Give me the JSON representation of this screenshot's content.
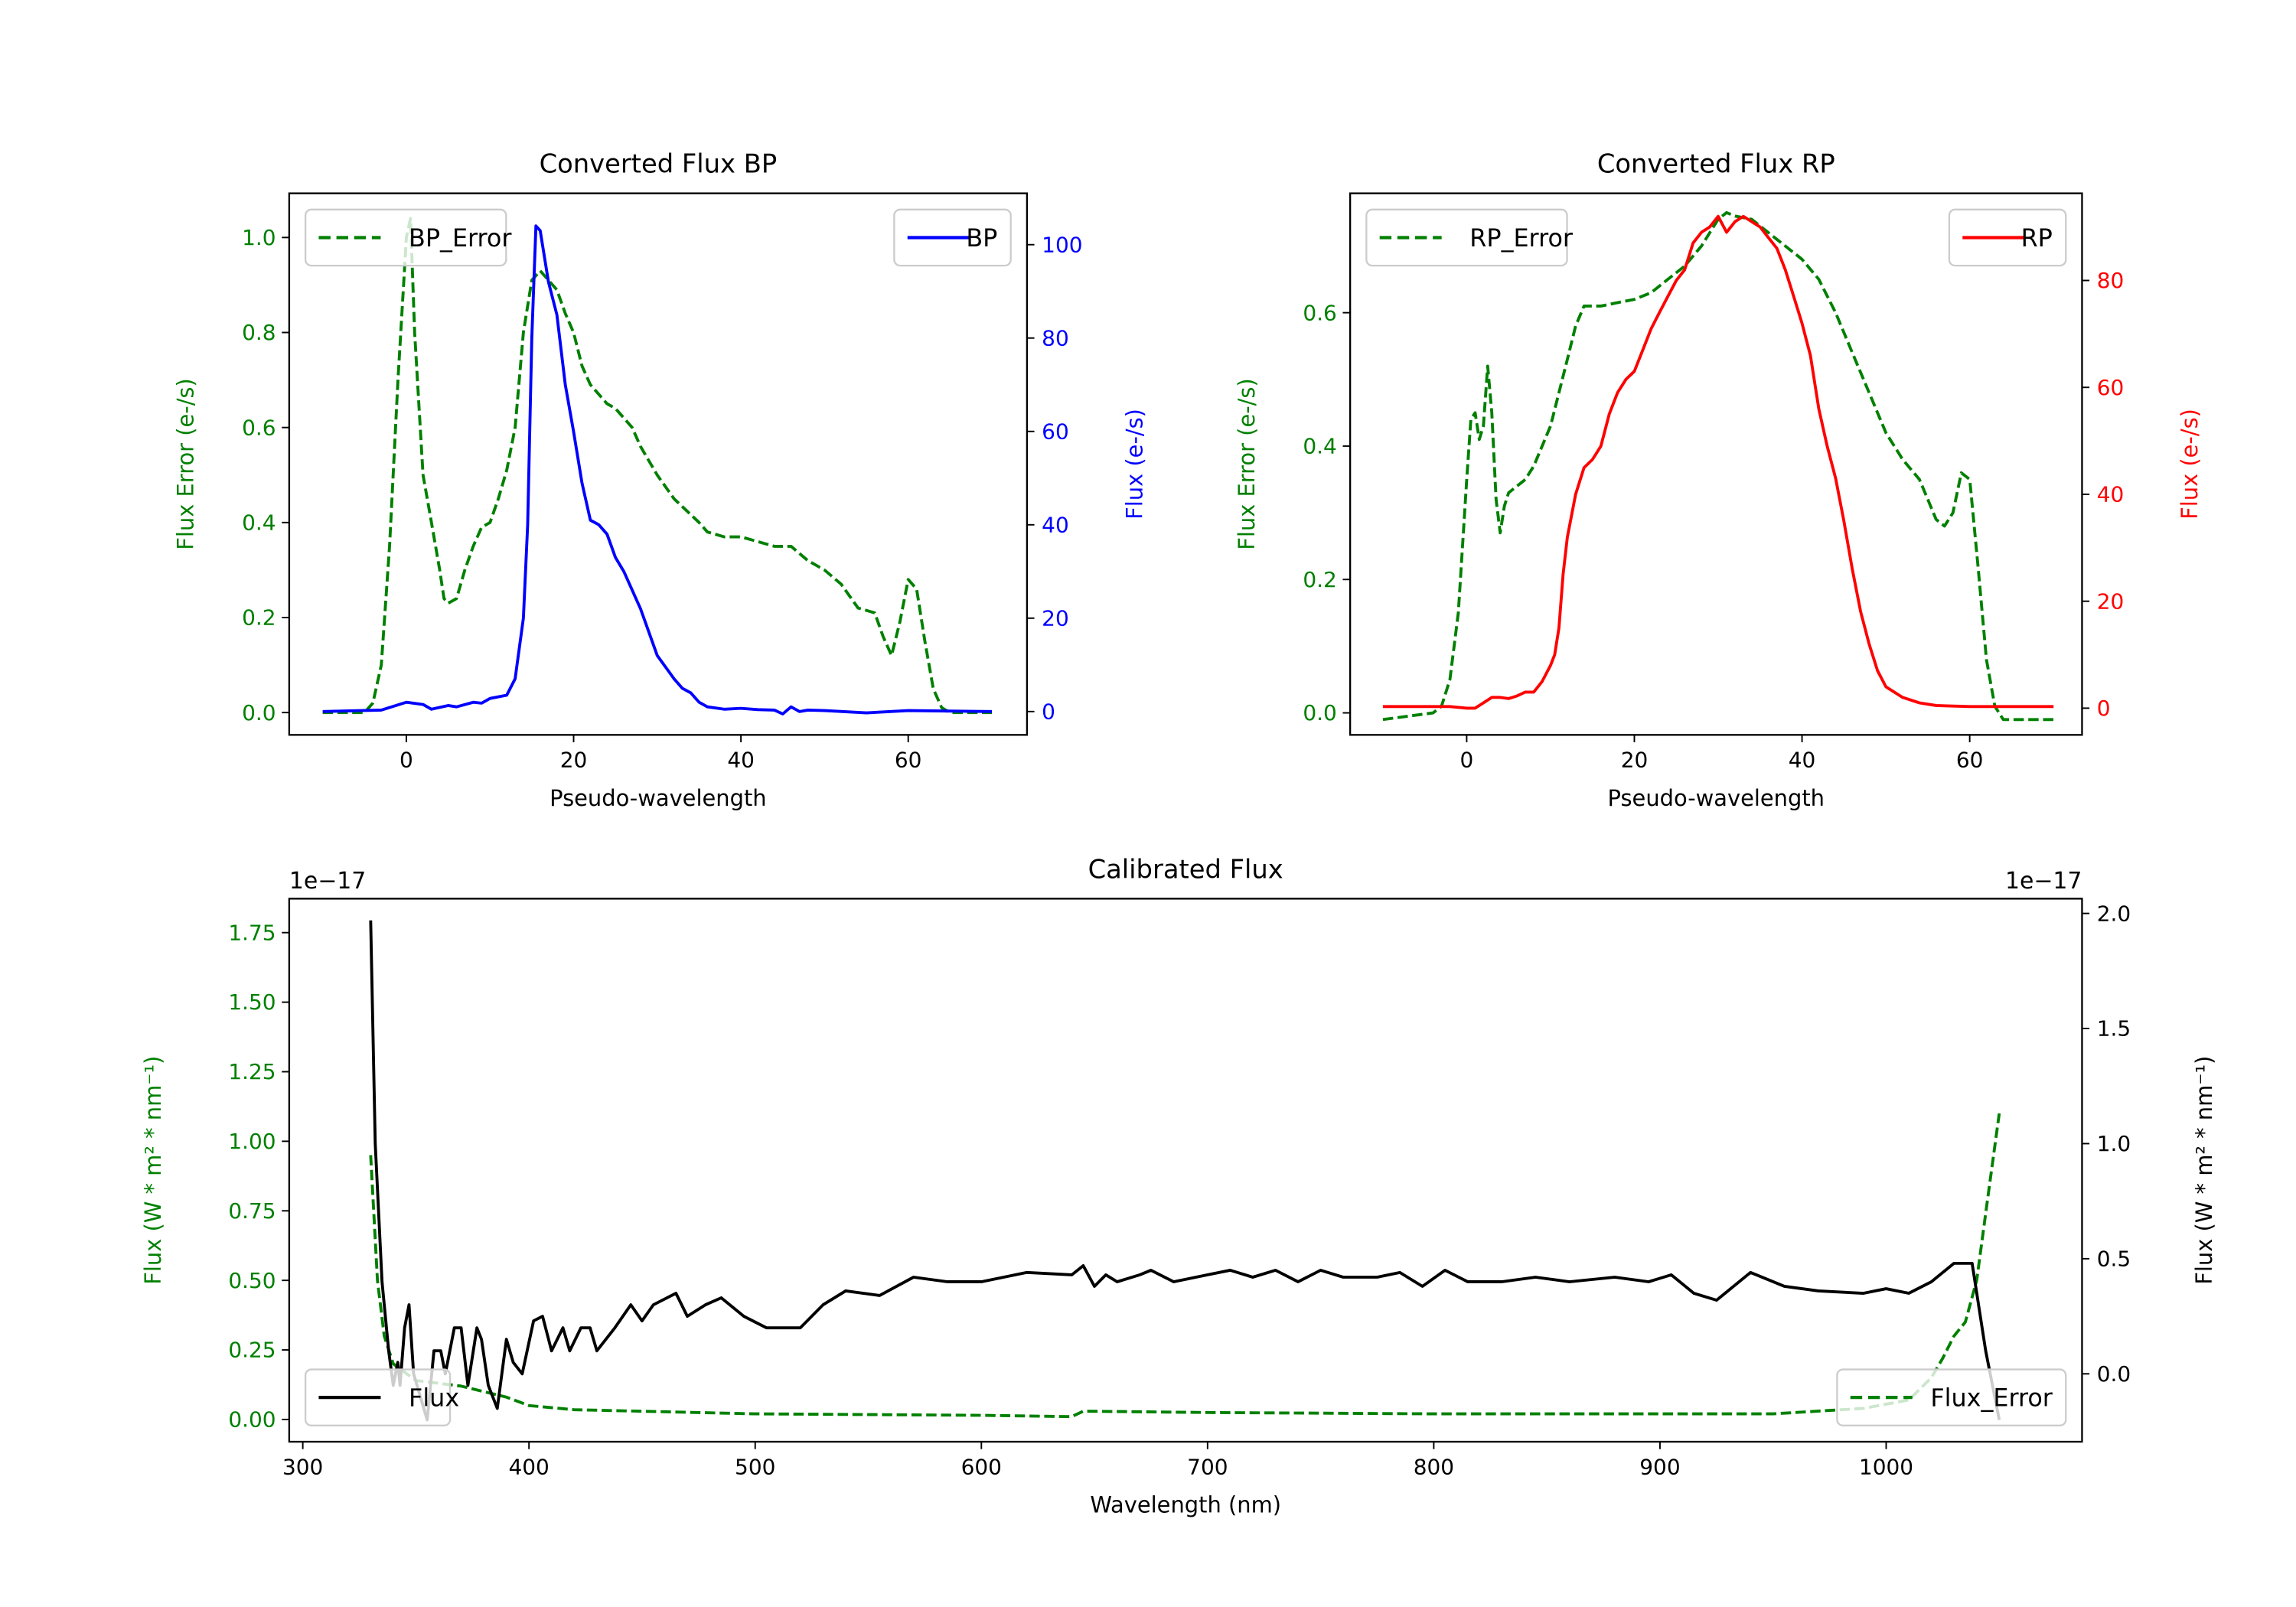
{
  "chart_data": [
    {
      "type": "line",
      "title": "Converted Flux BP",
      "xlabel": "Pseudo-wavelength",
      "ylabel_left": "Flux Error (e-/s)",
      "ylabel_right": "Flux (e-/s)",
      "xlim": [
        -14,
        74.2
      ],
      "ylim_left": [
        -0.047,
        1.093
      ],
      "ylim_right": [
        -5,
        111
      ],
      "xticks": [
        0,
        20,
        40,
        60
      ],
      "yticks_left": [
        "0.0",
        "0.2",
        "0.4",
        "0.6",
        "0.8",
        "1.0"
      ],
      "yticks_right": [
        "0",
        "20",
        "40",
        "60",
        "80",
        "100"
      ],
      "colors": {
        "left": "#008000",
        "right": "#0000ff"
      },
      "legend_left": {
        "label": "BP_Error",
        "placement": "upper-left"
      },
      "legend_right": {
        "label": "BP",
        "placement": "upper-right"
      },
      "series": [
        {
          "name": "BP_Error",
          "axis": "left",
          "style": "dashed",
          "color": "#008000",
          "x": [
            -10,
            -5,
            -4,
            -3,
            -2,
            -1,
            0,
            0.5,
            1,
            2,
            3,
            4,
            4.5,
            5,
            6,
            7,
            8,
            9,
            10,
            11,
            12,
            13,
            14,
            15,
            16,
            17,
            18,
            19,
            20,
            21,
            22,
            23,
            24,
            25,
            26,
            27,
            28,
            30,
            32,
            35,
            36,
            38,
            40,
            42,
            44,
            46,
            48,
            50,
            52,
            54,
            56,
            57,
            58,
            59,
            60,
            61,
            62,
            63,
            64,
            65,
            70
          ],
          "y": [
            0,
            0,
            0.02,
            0.1,
            0.35,
            0.7,
            1.0,
            1.04,
            0.8,
            0.5,
            0.4,
            0.3,
            0.24,
            0.23,
            0.24,
            0.3,
            0.35,
            0.39,
            0.4,
            0.45,
            0.51,
            0.6,
            0.8,
            0.91,
            0.93,
            0.91,
            0.89,
            0.84,
            0.8,
            0.73,
            0.69,
            0.67,
            0.65,
            0.64,
            0.62,
            0.6,
            0.56,
            0.5,
            0.45,
            0.4,
            0.38,
            0.37,
            0.37,
            0.36,
            0.35,
            0.35,
            0.32,
            0.3,
            0.27,
            0.22,
            0.21,
            0.16,
            0.12,
            0.19,
            0.28,
            0.26,
            0.15,
            0.05,
            0.01,
            0,
            0
          ]
        },
        {
          "name": "BP",
          "axis": "right",
          "style": "solid",
          "color": "#0000ff",
          "x": [
            -10,
            -3,
            0,
            2,
            3,
            5,
            6,
            8,
            9,
            10,
            12,
            13,
            14,
            14.5,
            15,
            15.5,
            16,
            17,
            18,
            19,
            20,
            21,
            22,
            23,
            24,
            25,
            26,
            28,
            30,
            32,
            33,
            34,
            35,
            36,
            38,
            40,
            42,
            44,
            45,
            46,
            47,
            48,
            50,
            55,
            60,
            70
          ],
          "y": [
            0,
            0.3,
            2,
            1.5,
            0.5,
            1.3,
            1,
            2,
            1.8,
            2.8,
            3.5,
            7,
            20,
            40,
            80,
            104,
            103,
            92,
            85,
            70,
            60,
            49,
            41,
            40,
            38,
            33,
            30,
            22,
            12,
            7,
            5,
            4,
            2,
            1,
            0.5,
            0.7,
            0.4,
            0.3,
            -0.5,
            1,
            0,
            0.3,
            0.2,
            -0.3,
            0.2,
            0
          ]
        }
      ]
    },
    {
      "type": "line",
      "title": "Converted Flux RP",
      "xlabel": "Pseudo-wavelength",
      "ylabel_left": "Flux Error (e-/s)",
      "ylabel_right": "Flux (e-/s)",
      "xlim": [
        -13.9,
        73.4
      ],
      "ylim_left": [
        -0.033,
        0.779
      ],
      "ylim_right": [
        -5,
        96.3
      ],
      "xticks": [
        0,
        20,
        40,
        60
      ],
      "yticks_left": [
        "0.0",
        "0.2",
        "0.4",
        "0.6"
      ],
      "yticks_right": [
        "0",
        "20",
        "40",
        "60",
        "80"
      ],
      "colors": {
        "left": "#008000",
        "right": "#ff0000"
      },
      "legend_left": {
        "label": "RP_Error",
        "placement": "upper-left"
      },
      "legend_right": {
        "label": "RP",
        "placement": "upper-right"
      },
      "series": [
        {
          "name": "RP_Error",
          "axis": "left",
          "style": "dashed",
          "color": "#008000",
          "x": [
            -10,
            -4,
            -3,
            -2,
            -1,
            0,
            0.5,
            1,
            1.5,
            2,
            2.5,
            3,
            3.5,
            4,
            4.5,
            5,
            6,
            7,
            8,
            9,
            10,
            11,
            12,
            13,
            14,
            16,
            18,
            20,
            22,
            24,
            26,
            28,
            29,
            30,
            31,
            32,
            34,
            36,
            38,
            40,
            42,
            44,
            46,
            48,
            50,
            52,
            54,
            55,
            56,
            57,
            58,
            59,
            60,
            61,
            62,
            63,
            64,
            70
          ],
          "y": [
            -0.01,
            0,
            0.01,
            0.05,
            0.15,
            0.35,
            0.44,
            0.45,
            0.41,
            0.43,
            0.52,
            0.45,
            0.32,
            0.27,
            0.31,
            0.33,
            0.34,
            0.35,
            0.37,
            0.4,
            0.43,
            0.48,
            0.53,
            0.58,
            0.61,
            0.61,
            0.615,
            0.62,
            0.63,
            0.65,
            0.67,
            0.7,
            0.72,
            0.74,
            0.75,
            0.745,
            0.74,
            0.72,
            0.7,
            0.68,
            0.65,
            0.6,
            0.54,
            0.48,
            0.42,
            0.38,
            0.35,
            0.32,
            0.29,
            0.28,
            0.3,
            0.36,
            0.35,
            0.22,
            0.08,
            0.01,
            -0.01,
            -0.01
          ]
        },
        {
          "name": "RP",
          "axis": "right",
          "style": "solid",
          "color": "#ff0000",
          "x": [
            -10,
            -5,
            -2,
            0,
            1,
            2,
            3,
            4,
            5,
            6,
            7,
            8,
            9,
            10,
            10.5,
            11,
            11.5,
            12,
            13,
            14,
            15,
            16,
            17,
            18,
            19,
            20,
            21,
            22,
            23,
            24,
            25,
            26,
            27,
            28,
            29,
            30,
            31,
            32,
            33,
            34,
            35,
            36,
            37,
            38,
            39,
            40,
            41,
            42,
            43,
            44,
            45,
            46,
            47,
            48,
            49,
            50,
            51,
            52,
            54,
            56,
            60,
            70
          ],
          "y": [
            0.3,
            0.3,
            0.3,
            0,
            0,
            1,
            2,
            2,
            1.8,
            2.3,
            3,
            3,
            5,
            8,
            10,
            15,
            25,
            32,
            40,
            45,
            46.5,
            49,
            55,
            59,
            61.5,
            63,
            67,
            71,
            74,
            77,
            80,
            82,
            87,
            89,
            90,
            92,
            89,
            91,
            92,
            91,
            90,
            88,
            86,
            82,
            77,
            72,
            66,
            56,
            49,
            43,
            35,
            26,
            18,
            12,
            7,
            4,
            3,
            2,
            1,
            0.5,
            0.3,
            0.3
          ]
        }
      ]
    },
    {
      "type": "line",
      "title": "Calibrated Flux",
      "xlabel": "Wavelength (nm)",
      "ylabel_left": "Flux (W * m² * nm⁻¹)",
      "ylabel_right": "Flux (W * m² * nm⁻¹)",
      "offset_left": "1e−17",
      "offset_right": "1e−17",
      "xlim": [
        294,
        1086.6
      ],
      "ylim_left": [
        -0.08,
        1.872
      ],
      "ylim_right": [
        -0.295,
        2.064
      ],
      "xticks": [
        300,
        400,
        500,
        600,
        700,
        800,
        900,
        1000
      ],
      "yticks_left": [
        "0.00",
        "0.25",
        "0.50",
        "0.75",
        "1.00",
        "1.25",
        "1.50",
        "1.75"
      ],
      "yticks_right": [
        "0.0",
        "0.5",
        "1.0",
        "1.5",
        "2.0"
      ],
      "colors": {
        "left": "#008000",
        "right": "#000000"
      },
      "legend_left": {
        "label": "Flux",
        "placement": "lower-left"
      },
      "legend_right": {
        "label": "Flux_Error",
        "placement": "lower-right"
      },
      "series": [
        {
          "name": "Flux_Error",
          "axis": "left",
          "style": "dashed",
          "color": "#008000",
          "x": [
            330,
            333,
            336,
            340,
            350,
            370,
            390,
            400,
            420,
            500,
            600,
            640,
            645,
            700,
            800,
            900,
            950,
            990,
            1010,
            1020,
            1025,
            1030,
            1035,
            1040,
            1045,
            1050
          ],
          "y": [
            0.95,
            0.5,
            0.3,
            0.2,
            0.14,
            0.12,
            0.08,
            0.05,
            0.035,
            0.02,
            0.015,
            0.01,
            0.03,
            0.025,
            0.02,
            0.02,
            0.02,
            0.04,
            0.07,
            0.15,
            0.22,
            0.3,
            0.35,
            0.5,
            0.8,
            1.1
          ]
        },
        {
          "name": "Flux",
          "axis": "right",
          "style": "solid",
          "color": "#000000",
          "x": [
            330,
            332,
            335,
            338,
            340,
            342,
            343,
            345,
            347,
            349,
            352,
            355,
            358,
            361,
            363,
            367,
            370,
            373,
            377,
            379,
            382,
            386,
            390,
            393,
            397,
            402,
            406,
            410,
            415,
            418,
            423,
            427,
            430,
            438,
            445,
            450,
            455,
            465,
            470,
            478,
            485,
            495,
            505,
            520,
            530,
            540,
            555,
            570,
            585,
            600,
            620,
            640,
            645,
            650,
            655,
            660,
            670,
            675,
            685,
            700,
            710,
            720,
            730,
            740,
            750,
            760,
            775,
            785,
            795,
            805,
            815,
            830,
            845,
            860,
            880,
            895,
            905,
            915,
            925,
            940,
            955,
            970,
            990,
            1000,
            1010,
            1020,
            1030,
            1038,
            1044,
            1050
          ],
          "y": [
            1.97,
            1.0,
            0.4,
            0.1,
            -0.05,
            0.05,
            -0.05,
            0.2,
            0.3,
            0.0,
            -0.1,
            -0.2,
            0.1,
            0.1,
            0.0,
            0.2,
            0.2,
            -0.05,
            0.2,
            0.15,
            -0.05,
            -0.15,
            0.15,
            0.05,
            0.0,
            0.23,
            0.25,
            0.1,
            0.2,
            0.1,
            0.2,
            0.2,
            0.1,
            0.2,
            0.3,
            0.23,
            0.3,
            0.35,
            0.25,
            0.3,
            0.33,
            0.25,
            0.2,
            0.2,
            0.3,
            0.36,
            0.34,
            0.42,
            0.4,
            0.4,
            0.44,
            0.43,
            0.47,
            0.38,
            0.43,
            0.4,
            0.43,
            0.45,
            0.4,
            0.43,
            0.45,
            0.42,
            0.45,
            0.4,
            0.45,
            0.42,
            0.42,
            0.44,
            0.38,
            0.45,
            0.4,
            0.4,
            0.42,
            0.4,
            0.42,
            0.4,
            0.43,
            0.35,
            0.32,
            0.44,
            0.38,
            0.36,
            0.35,
            0.37,
            0.35,
            0.4,
            0.48,
            0.48,
            0.1,
            -0.2
          ]
        }
      ]
    }
  ]
}
